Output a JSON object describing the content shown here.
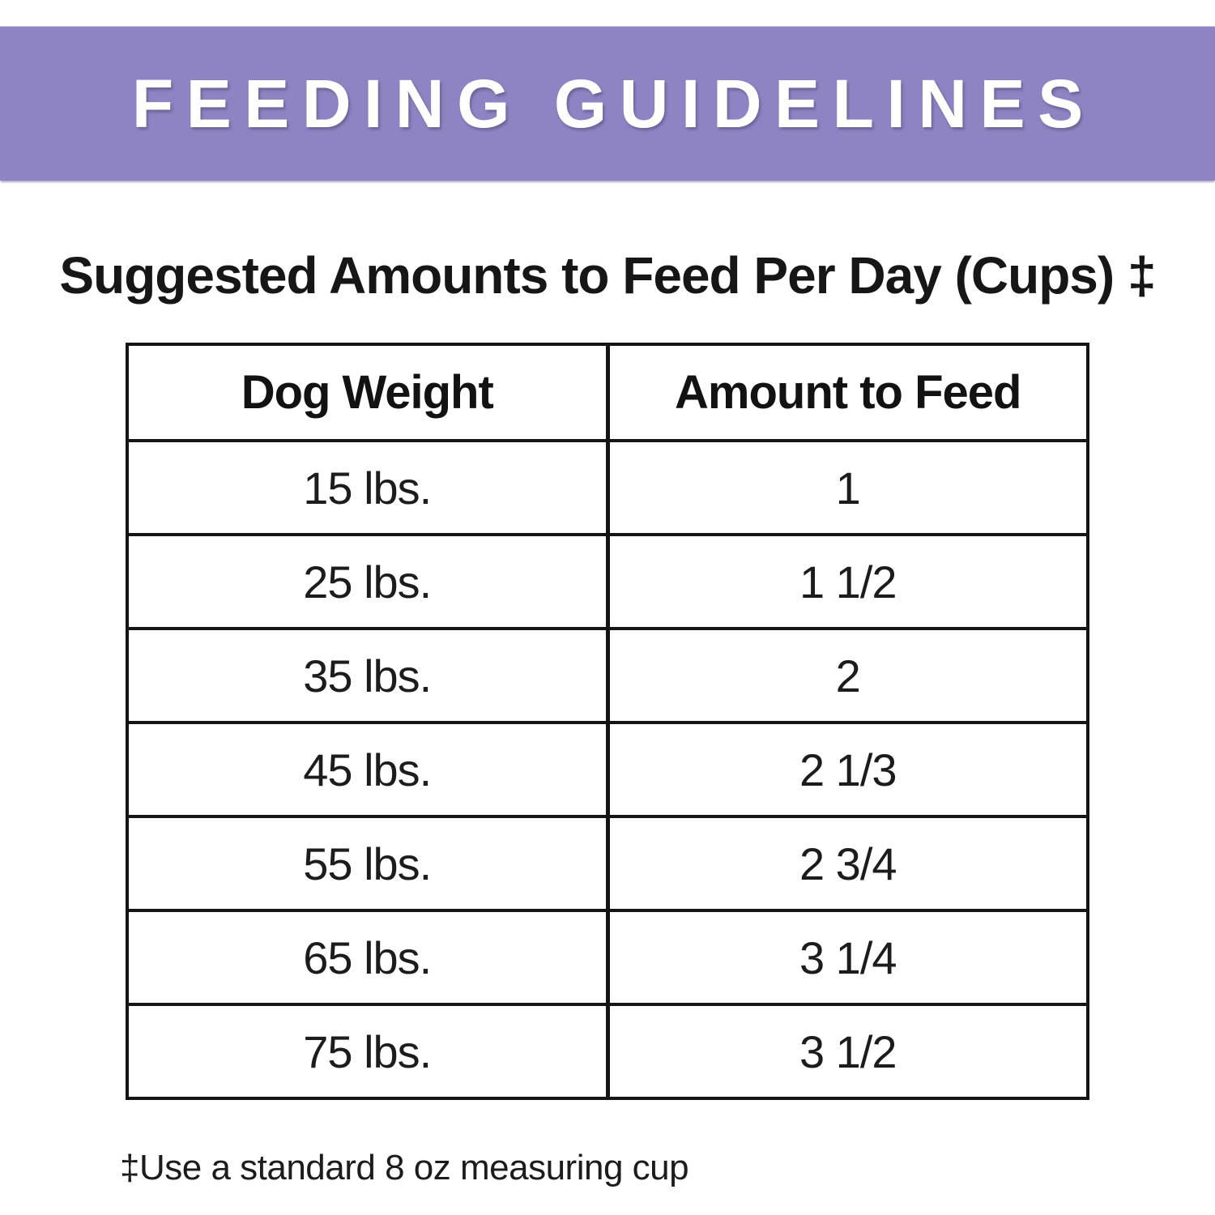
{
  "banner": {
    "title": "FEEDING GUIDELINES",
    "background_color": "#8e84c3",
    "text_color": "#ffffff"
  },
  "heading": {
    "text": "Suggested Amounts to Feed Per Day (Cups) ‡"
  },
  "table": {
    "columns": [
      "Dog Weight",
      "Amount to Feed"
    ],
    "rows": [
      {
        "weight": "15 lbs.",
        "amount": "1"
      },
      {
        "weight": "25 lbs.",
        "amount": "1 1/2"
      },
      {
        "weight": "35 lbs.",
        "amount": "2"
      },
      {
        "weight": "45 lbs.",
        "amount": "2 1/3"
      },
      {
        "weight": "55 lbs.",
        "amount": "2 3/4"
      },
      {
        "weight": "65 lbs.",
        "amount": "3 1/4"
      },
      {
        "weight": "75 lbs.",
        "amount": "3 1/2"
      }
    ]
  },
  "footnote": {
    "text": "‡Use a standard 8 oz measuring cup"
  }
}
